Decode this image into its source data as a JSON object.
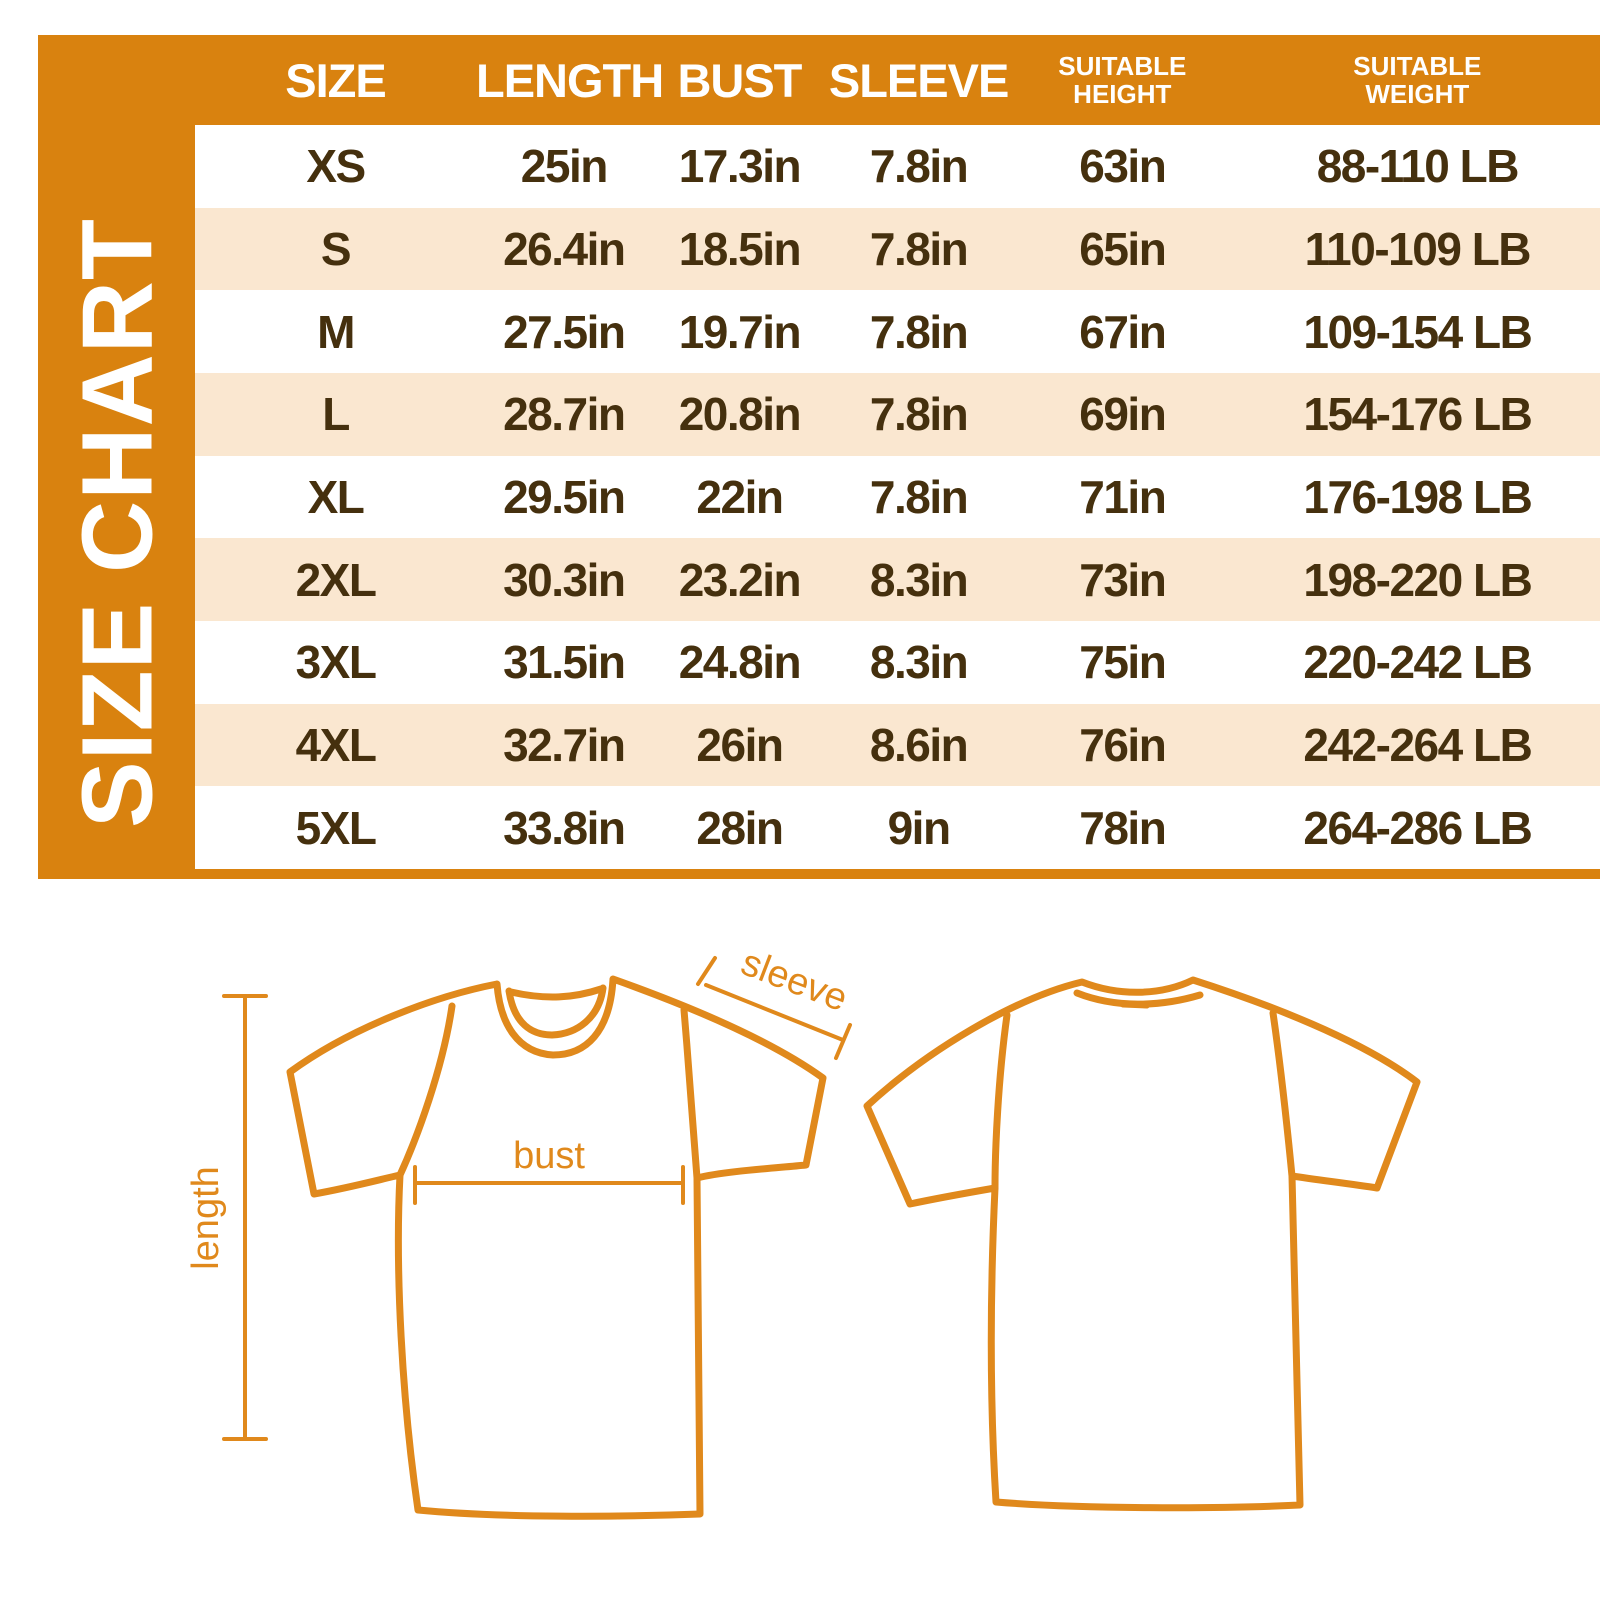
{
  "colors": {
    "frame_orange": "#D9820F",
    "row_cream": "#FAE7D0",
    "row_white": "#FFFFFF",
    "text_brown": "#45300E",
    "shirt_outline_orange": "#E0891C",
    "header_text": "#FFFFFF"
  },
  "table": {
    "title": "SIZE CHART",
    "headers": [
      {
        "line1": "SIZE"
      },
      {
        "line1": "LENGTH"
      },
      {
        "line1": "BUST"
      },
      {
        "line1": "SLEEVE"
      },
      {
        "line1": "SUITABLE",
        "line2": "HEIGHT"
      },
      {
        "line1": "SUITABLE",
        "line2": "WEIGHT"
      }
    ]
  },
  "chart_data": {
    "type": "table",
    "title": "SIZE CHART",
    "columns": [
      "SIZE",
      "LENGTH",
      "BUST",
      "SLEEVE",
      "SUITABLE HEIGHT",
      "SUITABLE WEIGHT"
    ],
    "rows": [
      [
        "XS",
        "25in",
        "17.3in",
        "7.8in",
        "63in",
        "88-110 LB"
      ],
      [
        "S",
        "26.4in",
        "18.5in",
        "7.8in",
        "65in",
        "110-109 LB"
      ],
      [
        "M",
        "27.5in",
        "19.7in",
        "7.8in",
        "67in",
        "109-154 LB"
      ],
      [
        "L",
        "28.7in",
        "20.8in",
        "7.8in",
        "69in",
        "154-176 LB"
      ],
      [
        "XL",
        "29.5in",
        "22in",
        "7.8in",
        "71in",
        "176-198 LB"
      ],
      [
        "2XL",
        "30.3in",
        "23.2in",
        "8.3in",
        "73in",
        "198-220 LB"
      ],
      [
        "3XL",
        "31.5in",
        "24.8in",
        "8.3in",
        "75in",
        "220-242 LB"
      ],
      [
        "4XL",
        "32.7in",
        "26in",
        "8.6in",
        "76in",
        "242-264 LB"
      ],
      [
        "5XL",
        "33.8in",
        "28in",
        "9in",
        "78in",
        "264-286 LB"
      ]
    ]
  },
  "diagram": {
    "sleeve_label": "sleeve",
    "bust_label": "bust",
    "length_label": "length"
  }
}
